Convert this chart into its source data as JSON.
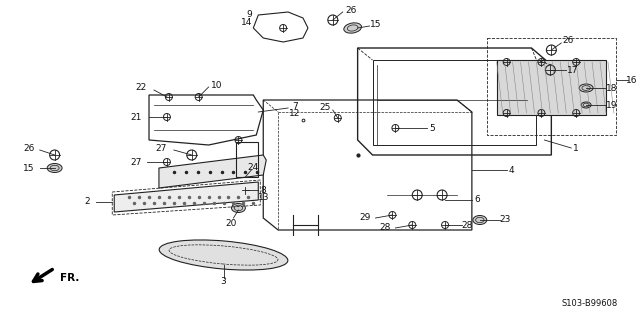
{
  "bg_color": "#ffffff",
  "diagram_code": "S103-B99608",
  "lc": "#222222",
  "tc": "#111111",
  "fs": 6.5
}
